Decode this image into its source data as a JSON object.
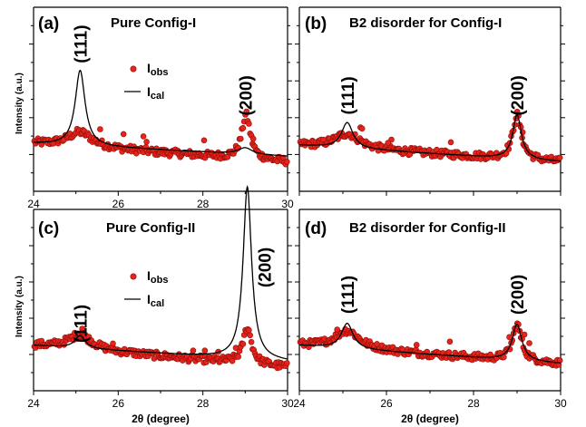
{
  "figure": {
    "xlabel": "2θ (degree)",
    "ylabel": "Intensity (a.u.)",
    "legend": {
      "obs": "I",
      "obs_sub": "obs",
      "cal": "I",
      "cal_sub": "cal"
    }
  },
  "chart_data": [
    {
      "panel": "(a)",
      "title": "Pure Config-I",
      "type": "scatter",
      "xlim": [
        24,
        30
      ],
      "xticks": [
        "24",
        "26",
        "28",
        "30"
      ],
      "legend": true,
      "peak_labels": [
        {
          "text": "(111)",
          "x": 25.1,
          "y": 0.8
        },
        {
          "text": "(200)",
          "x": 29.0,
          "y": 0.52
        }
      ],
      "obs": {
        "baseline_start": 0.26,
        "baseline_end": 0.16,
        "noise": 0.02,
        "peaks": [
          {
            "x": 25.1,
            "h": 0.08,
            "w": 0.35
          },
          {
            "x": 29.02,
            "h": 0.24,
            "w": 0.12
          }
        ]
      },
      "cal": {
        "baseline_start": 0.26,
        "baseline_end": 0.19,
        "peaks": [
          {
            "x": 25.1,
            "h": 0.41,
            "w": 0.14
          },
          {
            "x": 29.0,
            "h": 0.035,
            "w": 0.2
          }
        ]
      },
      "series": [
        {
          "name": "Iobs"
        },
        {
          "name": "Ical"
        }
      ]
    },
    {
      "panel": "(b)",
      "title": "B2 disorder for Config-I",
      "type": "scatter",
      "xlim": [
        24,
        30
      ],
      "xticks": [],
      "legend": false,
      "peak_labels": [
        {
          "text": "(111)",
          "x": 25.1,
          "y": 0.52
        },
        {
          "text": "(200)",
          "x": 29.0,
          "y": 0.52
        }
      ],
      "obs": {
        "baseline_start": 0.25,
        "baseline_end": 0.16,
        "noise": 0.02,
        "peaks": [
          {
            "x": 25.1,
            "h": 0.08,
            "w": 0.35
          },
          {
            "x": 29.0,
            "h": 0.24,
            "w": 0.12
          }
        ]
      },
      "cal": {
        "baseline_start": 0.25,
        "baseline_end": 0.16,
        "peaks": [
          {
            "x": 25.1,
            "h": 0.14,
            "w": 0.16
          },
          {
            "x": 29.0,
            "h": 0.24,
            "w": 0.12
          }
        ]
      },
      "series": [
        {
          "name": "Iobs"
        },
        {
          "name": "Ical"
        }
      ]
    },
    {
      "panel": "(c)",
      "title": "Pure Config-II",
      "type": "scatter",
      "xlim": [
        24,
        30
      ],
      "xticks": [
        "24",
        "26",
        "28",
        "30"
      ],
      "legend": true,
      "peak_labels": [
        {
          "text": "(111)",
          "x": 25.1,
          "y": 0.37
        },
        {
          "text": "(200)",
          "x": 29.45,
          "y": 0.68
        }
      ],
      "obs": {
        "baseline_start": 0.25,
        "baseline_end": 0.13,
        "noise": 0.02,
        "peaks": [
          {
            "x": 25.1,
            "h": 0.08,
            "w": 0.35
          },
          {
            "x": 29.05,
            "h": 0.2,
            "w": 0.12
          }
        ]
      },
      "cal": {
        "baseline_start": 0.25,
        "baseline_end": 0.16,
        "peaks": [
          {
            "x": 25.1,
            "h": 0.07,
            "w": 0.15
          },
          {
            "x": 29.05,
            "h": 0.95,
            "w": 0.12
          }
        ]
      },
      "series": [
        {
          "name": "Iobs"
        },
        {
          "name": "Ical"
        }
      ]
    },
    {
      "panel": "(d)",
      "title": "B2 disorder for Config-II",
      "type": "scatter",
      "xlim": [
        24,
        30
      ],
      "xticks": [
        "24",
        "26",
        "28",
        "30"
      ],
      "legend": false,
      "peak_labels": [
        {
          "text": "(111)",
          "x": 25.1,
          "y": 0.53
        },
        {
          "text": "(200)",
          "x": 29.0,
          "y": 0.53
        }
      ],
      "obs": {
        "baseline_start": 0.25,
        "baseline_end": 0.15,
        "noise": 0.02,
        "peaks": [
          {
            "x": 25.1,
            "h": 0.1,
            "w": 0.35
          },
          {
            "x": 29.0,
            "h": 0.2,
            "w": 0.12
          }
        ]
      },
      "cal": {
        "baseline_start": 0.25,
        "baseline_end": 0.15,
        "peaks": [
          {
            "x": 25.1,
            "h": 0.14,
            "w": 0.16
          },
          {
            "x": 29.0,
            "h": 0.2,
            "w": 0.13
          }
        ]
      },
      "series": [
        {
          "name": "Iobs"
        },
        {
          "name": "Ical"
        }
      ]
    }
  ]
}
